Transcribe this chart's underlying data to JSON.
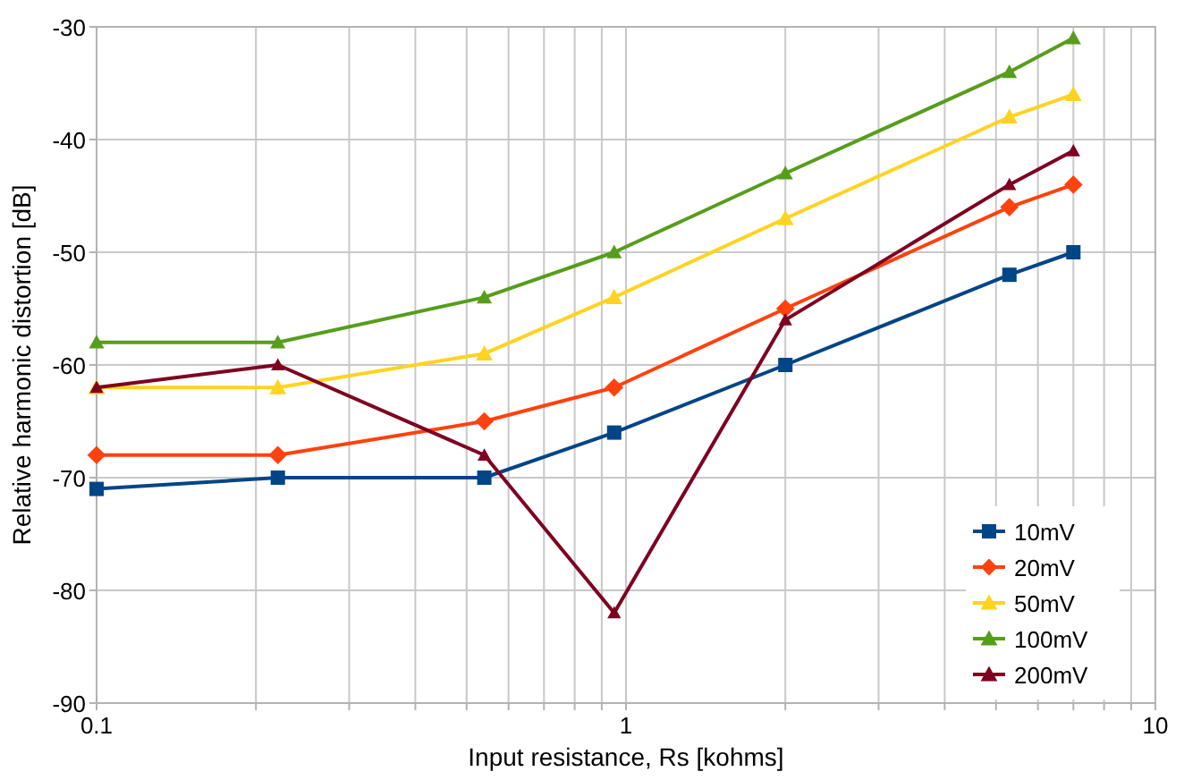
{
  "chart_data": {
    "type": "line",
    "xlabel": "Input resistance, Rs [kohms]",
    "ylabel": "Relative harmonic distortion [dB]",
    "x": [
      0.1,
      0.22,
      0.54,
      0.95,
      2,
      5.3,
      7
    ],
    "series": [
      {
        "name": "10mV",
        "color": "#004586",
        "marker": "square",
        "values": [
          -71,
          -70,
          -70,
          -66,
          -60,
          -52,
          -50
        ]
      },
      {
        "name": "20mV",
        "color": "#ff420e",
        "marker": "diamond",
        "values": [
          -68,
          -68,
          -65,
          -62,
          -55,
          -46,
          -44
        ]
      },
      {
        "name": "50mV",
        "color": "#ffd320",
        "marker": "triangle",
        "values": [
          -62,
          -62,
          -59,
          -54,
          -47,
          -38,
          -36
        ]
      },
      {
        "name": "100mV",
        "color": "#579d1c",
        "marker": "triangle",
        "values": [
          -58,
          -58,
          -54,
          -50,
          -43,
          -34,
          -31
        ]
      },
      {
        "name": "200mV",
        "color": "#7e0021",
        "marker": "triangle",
        "values": [
          -62,
          -60,
          -68,
          -82,
          -56,
          -44,
          -41
        ]
      }
    ],
    "log": "x",
    "xlim": [
      0.1,
      10
    ],
    "xticks": [
      0.1,
      {
        "value": 0.2,
        "label": null
      },
      {
        "value": 0.3,
        "label": null
      },
      {
        "value": 0.4,
        "label": null
      },
      {
        "value": 0.5,
        "label": null
      },
      {
        "value": 0.6,
        "label": null
      },
      {
        "value": 0.7,
        "label": null
      },
      {
        "value": 0.8,
        "label": null
      },
      {
        "value": 0.9,
        "label": null
      },
      1,
      {
        "value": 2,
        "label": null
      },
      {
        "value": 3,
        "label": null
      },
      {
        "value": 4,
        "label": null
      },
      {
        "value": 5,
        "label": null
      },
      {
        "value": 6,
        "label": null
      },
      {
        "value": 7,
        "label": null
      },
      {
        "value": 8,
        "label": null
      },
      {
        "value": 9,
        "label": null
      },
      10
    ],
    "ylim": [
      -90,
      -30
    ],
    "yticks": [
      -90,
      -80,
      -70,
      -60,
      -50,
      -40,
      -30
    ],
    "grid": true,
    "legend": "right",
    "line_style": "solid"
  }
}
